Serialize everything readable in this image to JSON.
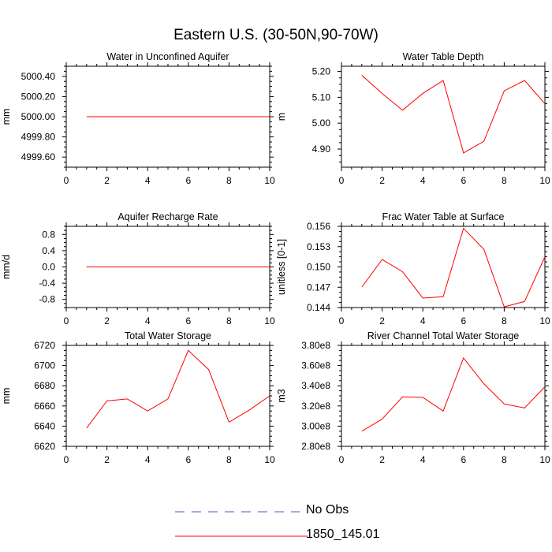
{
  "page": {
    "title": "Eastern U.S. (30-50N,90-70W)"
  },
  "legend": {
    "items": [
      {
        "label": "No Obs",
        "color": "#5050c8",
        "dash": "dashed"
      },
      {
        "label": "1850_145.01",
        "color": "#ff0000",
        "dash": "solid"
      }
    ]
  },
  "chart_data": [
    {
      "type": "line",
      "title": "Water in Unconfined Aquifer",
      "ylabel": "mm",
      "xlim": [
        0,
        10
      ],
      "ylim": [
        4999.5,
        5000.5
      ],
      "xticks": [
        0,
        2,
        4,
        6,
        8,
        10
      ],
      "yticks": [
        4999.6,
        4999.8,
        5000.0,
        5000.2,
        5000.4
      ],
      "ytick_labels": [
        "4999.60",
        "4999.80",
        "5000.00",
        "5000.20",
        "5000.40"
      ],
      "series": [
        {
          "name": "1850_145.01",
          "color": "#ff0000",
          "x": [
            1,
            2,
            3,
            4,
            5,
            6,
            7,
            8,
            9,
            10
          ],
          "y": [
            5000,
            5000,
            5000,
            5000,
            5000,
            5000,
            5000,
            5000,
            5000,
            5000
          ]
        }
      ]
    },
    {
      "type": "line",
      "title": "Water Table Depth",
      "ylabel": "m",
      "xlim": [
        0,
        10
      ],
      "ylim": [
        4.83,
        5.22
      ],
      "xticks": [
        0,
        2,
        4,
        6,
        8,
        10
      ],
      "yticks": [
        4.9,
        5.0,
        5.1,
        5.2
      ],
      "ytick_labels": [
        "4.90",
        "5.00",
        "5.10",
        "5.20"
      ],
      "series": [
        {
          "name": "1850_145.01",
          "color": "#ff0000",
          "x": [
            1,
            2,
            3,
            4,
            5,
            6,
            7,
            8,
            9,
            10
          ],
          "y": [
            5.185,
            5.115,
            5.05,
            5.115,
            5.165,
            4.885,
            4.93,
            5.125,
            5.165,
            5.075
          ]
        }
      ]
    },
    {
      "type": "line",
      "title": "Aquifer Recharge Rate",
      "ylabel": "mm/d",
      "xlim": [
        0,
        10
      ],
      "ylim": [
        -1,
        1
      ],
      "xticks": [
        0,
        2,
        4,
        6,
        8,
        10
      ],
      "yticks": [
        -0.8,
        -0.4,
        0.0,
        0.4,
        0.8
      ],
      "ytick_labels": [
        "-0.8",
        "-0.4",
        "0.0",
        "0.4",
        "0.8"
      ],
      "series": [
        {
          "name": "1850_145.01",
          "color": "#ff0000",
          "x": [
            1,
            2,
            3,
            4,
            5,
            6,
            7,
            8,
            9,
            10
          ],
          "y": [
            0,
            0,
            0,
            0,
            0,
            0,
            0,
            0,
            0,
            0
          ]
        }
      ]
    },
    {
      "type": "line",
      "title": "Frac Water Table at Surface",
      "ylabel": "unitless [0-1]",
      "xlim": [
        0,
        10
      ],
      "ylim": [
        0.144,
        0.156
      ],
      "xticks": [
        0,
        2,
        4,
        6,
        8,
        10
      ],
      "yticks": [
        0.144,
        0.147,
        0.15,
        0.153,
        0.156
      ],
      "ytick_labels": [
        "0.144",
        "0.147",
        "0.150",
        "0.153",
        "0.156"
      ],
      "series": [
        {
          "name": "1850_145.01",
          "color": "#ff0000",
          "x": [
            1,
            2,
            3,
            4,
            5,
            6,
            7,
            8,
            9,
            10
          ],
          "y": [
            0.147,
            0.1511,
            0.1493,
            0.1454,
            0.1456,
            0.1557,
            0.1526,
            0.1441,
            0.1449,
            0.1515
          ]
        }
      ]
    },
    {
      "type": "line",
      "title": "Total Water Storage",
      "ylabel": "mm",
      "xlim": [
        0,
        10
      ],
      "ylim": [
        6620,
        6720
      ],
      "xticks": [
        0,
        2,
        4,
        6,
        8,
        10
      ],
      "yticks": [
        6620,
        6640,
        6660,
        6680,
        6700,
        6720
      ],
      "ytick_labels": [
        "6620",
        "6640",
        "6660",
        "6680",
        "6700",
        "6720"
      ],
      "series": [
        {
          "name": "1850_145.01",
          "color": "#ff0000",
          "x": [
            1,
            2,
            3,
            4,
            5,
            6,
            7,
            8,
            9,
            10
          ],
          "y": [
            6638,
            6665,
            6667,
            6655,
            6667,
            6715,
            6696,
            6644,
            6656,
            6670
          ]
        }
      ]
    },
    {
      "type": "line",
      "title": "River Channel Total Water Storage",
      "ylabel": "m3",
      "xlim": [
        0,
        10
      ],
      "ylim": [
        280000000.0,
        380000000.0
      ],
      "xticks": [
        0,
        2,
        4,
        6,
        8,
        10
      ],
      "yticks": [
        280000000.0,
        300000000.0,
        320000000.0,
        340000000.0,
        360000000.0,
        380000000.0
      ],
      "ytick_labels": [
        "2.80e8",
        "3.00e8",
        "3.20e8",
        "3.40e8",
        "3.60e8",
        "3.80e8"
      ],
      "series": [
        {
          "name": "1850_145.01",
          "color": "#ff0000",
          "x": [
            1,
            2,
            3,
            4,
            5,
            6,
            7,
            8,
            9,
            10
          ],
          "y": [
            295000000.0,
            307000000.0,
            329000000.0,
            328500000.0,
            315000000.0,
            367500000.0,
            342000000.0,
            322000000.0,
            318000000.0,
            339000000.0
          ]
        }
      ]
    }
  ]
}
